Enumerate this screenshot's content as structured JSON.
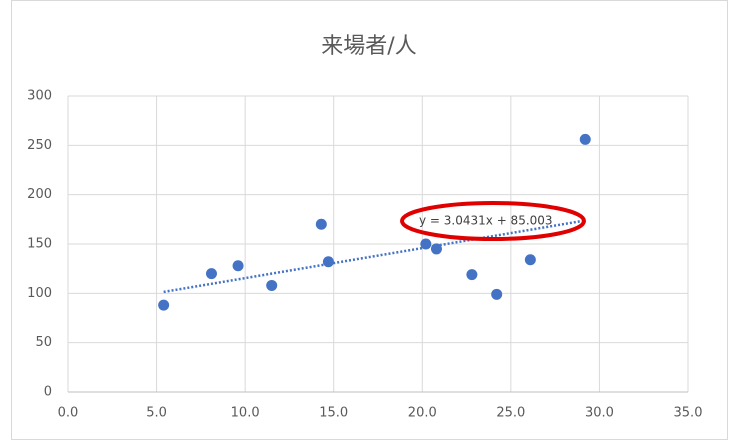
{
  "chart_data": {
    "type": "scatter",
    "title": "来場者/人",
    "x": [
      5.4,
      8.1,
      9.6,
      11.5,
      14.3,
      14.7,
      20.2,
      20.8,
      22.8,
      24.2,
      26.1,
      29.2
    ],
    "values": [
      88,
      120,
      128,
      108,
      170,
      132,
      150,
      145,
      119,
      99,
      134,
      256
    ],
    "color": "#4472c4",
    "xlim": [
      0,
      35
    ],
    "xticks": [
      {
        "value": 0,
        "label": "0.0"
      },
      {
        "value": 5,
        "label": "5.0"
      },
      {
        "value": 10,
        "label": "10.0"
      },
      {
        "value": 15,
        "label": "15.0"
      },
      {
        "value": 20,
        "label": "20.0"
      },
      {
        "value": 25,
        "label": "25.0"
      },
      {
        "value": 30,
        "label": "30.0"
      },
      {
        "value": 35,
        "label": "35.0"
      }
    ],
    "ylim": [
      0,
      300
    ],
    "yticks": [
      0,
      50,
      100,
      150,
      200,
      250,
      300
    ],
    "grid": true,
    "trendline": {
      "label": "y = 3.0431x + 85.003",
      "slope": 3.0431,
      "intercept": 85.003
    }
  }
}
